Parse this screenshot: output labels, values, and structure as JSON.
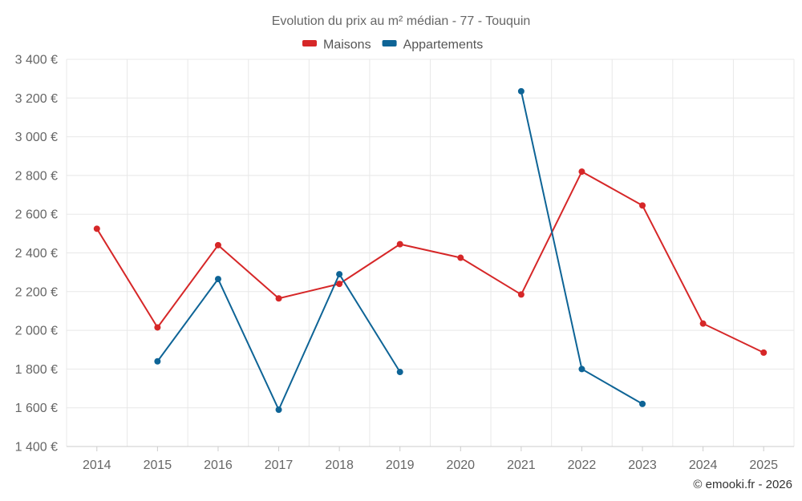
{
  "chart_data": {
    "type": "line",
    "title": "Evolution du prix au m² médian - 77 - Touquin",
    "categories": [
      "2014",
      "2015",
      "2016",
      "2017",
      "2018",
      "2019",
      "2020",
      "2021",
      "2022",
      "2023",
      "2024",
      "2025"
    ],
    "series": [
      {
        "name": "Maisons",
        "color": "#d62728",
        "values": [
          2525,
          2015,
          2440,
          2165,
          2240,
          2445,
          2375,
          2185,
          2820,
          2645,
          2035,
          1885
        ]
      },
      {
        "name": "Appartements",
        "color": "#0e6496",
        "values": [
          null,
          1840,
          2265,
          1590,
          2290,
          1785,
          null,
          3235,
          1800,
          1620,
          null,
          null
        ]
      }
    ],
    "ylim": [
      1400,
      3400
    ],
    "yticks": [
      1400,
      1600,
      1800,
      2000,
      2200,
      2400,
      2600,
      2800,
      3000,
      3200,
      3400
    ],
    "ytick_labels": [
      "1 400 €",
      "1 600 €",
      "1 800 €",
      "2 000 €",
      "2 200 €",
      "2 400 €",
      "2 600 €",
      "2 800 €",
      "3 000 €",
      "3 200 €",
      "3 400 €"
    ],
    "xlabel": "",
    "ylabel": "",
    "grid": true,
    "legend_position": "top-center"
  },
  "credit": "© emooki.fr - 2026"
}
